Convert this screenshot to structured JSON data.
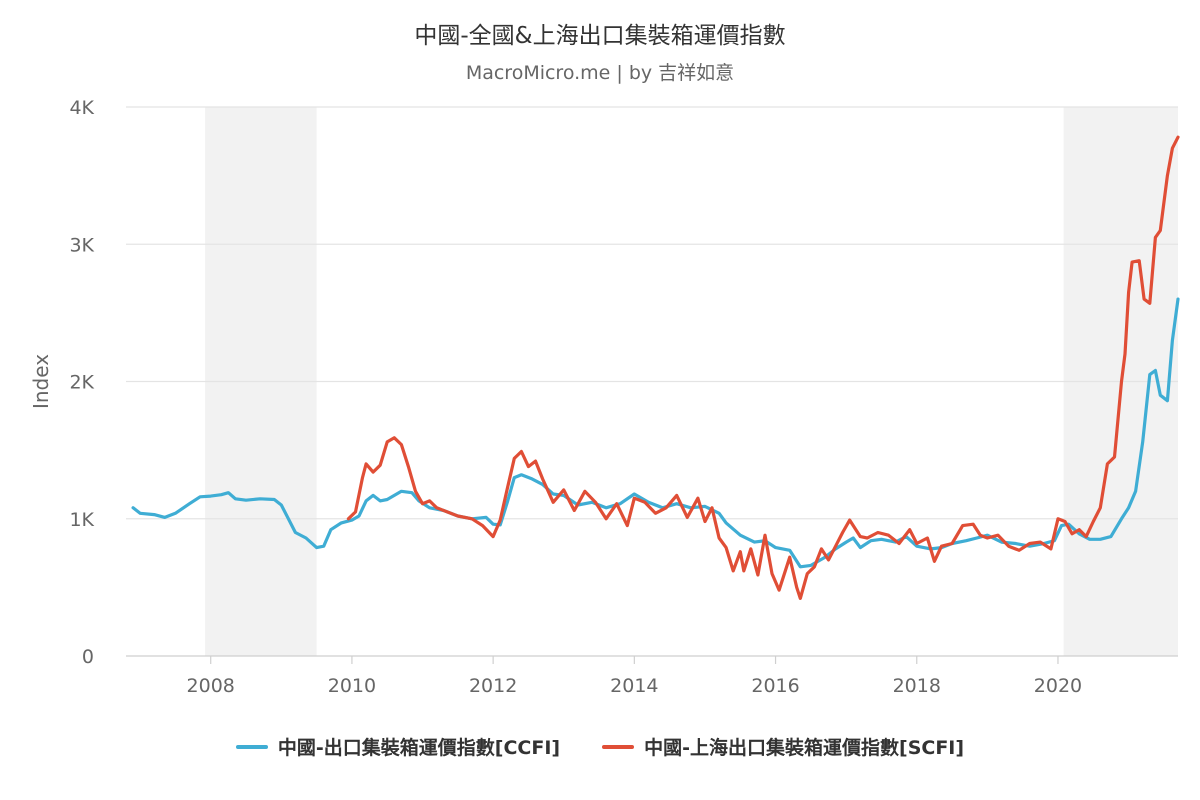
{
  "chart_data": {
    "type": "line",
    "title": "中國-全國&上海出口集裝箱運價指數",
    "subtitle": "MacroMicro.me | by 吉祥如意",
    "ylabel": "Index",
    "xlabel": "",
    "xlim": [
      2006.8,
      2021.7
    ],
    "ylim": [
      0,
      4000
    ],
    "x_ticks": [
      {
        "value": 2008,
        "label": "2008"
      },
      {
        "value": 2010,
        "label": "2010"
      },
      {
        "value": 2012,
        "label": "2012"
      },
      {
        "value": 2014,
        "label": "2014"
      },
      {
        "value": 2016,
        "label": "2016"
      },
      {
        "value": 2018,
        "label": "2018"
      },
      {
        "value": 2020,
        "label": "2020"
      }
    ],
    "y_ticks": [
      {
        "value": 0,
        "label": "0"
      },
      {
        "value": 1000,
        "label": "1K"
      },
      {
        "value": 2000,
        "label": "2K"
      },
      {
        "value": 3000,
        "label": "3K"
      },
      {
        "value": 4000,
        "label": "4K"
      }
    ],
    "grid": true,
    "legend_position": "bottom",
    "shaded_periods": [
      [
        2007.92,
        2009.5
      ],
      [
        2020.08,
        2021.7
      ]
    ],
    "series": [
      {
        "name": "中國-出口集裝箱運價指數[CCFI]",
        "color": "#3fadd4",
        "points": [
          [
            2006.9,
            1080
          ],
          [
            2007.0,
            1040
          ],
          [
            2007.2,
            1030
          ],
          [
            2007.35,
            1010
          ],
          [
            2007.5,
            1040
          ],
          [
            2007.7,
            1110
          ],
          [
            2007.85,
            1160
          ],
          [
            2008.0,
            1165
          ],
          [
            2008.15,
            1175
          ],
          [
            2008.25,
            1190
          ],
          [
            2008.35,
            1145
          ],
          [
            2008.5,
            1135
          ],
          [
            2008.7,
            1145
          ],
          [
            2008.9,
            1140
          ],
          [
            2009.0,
            1100
          ],
          [
            2009.1,
            1000
          ],
          [
            2009.2,
            900
          ],
          [
            2009.35,
            860
          ],
          [
            2009.5,
            790
          ],
          [
            2009.6,
            800
          ],
          [
            2009.7,
            920
          ],
          [
            2009.85,
            970
          ],
          [
            2010.0,
            990
          ],
          [
            2010.1,
            1020
          ],
          [
            2010.2,
            1130
          ],
          [
            2010.3,
            1170
          ],
          [
            2010.4,
            1130
          ],
          [
            2010.5,
            1140
          ],
          [
            2010.6,
            1170
          ],
          [
            2010.7,
            1200
          ],
          [
            2010.85,
            1190
          ],
          [
            2010.95,
            1130
          ],
          [
            2011.1,
            1080
          ],
          [
            2011.3,
            1060
          ],
          [
            2011.5,
            1020
          ],
          [
            2011.7,
            1000
          ],
          [
            2011.9,
            1010
          ],
          [
            2012.0,
            960
          ],
          [
            2012.1,
            955
          ],
          [
            2012.2,
            1120
          ],
          [
            2012.3,
            1300
          ],
          [
            2012.4,
            1320
          ],
          [
            2012.55,
            1290
          ],
          [
            2012.7,
            1250
          ],
          [
            2012.85,
            1180
          ],
          [
            2013.0,
            1170
          ],
          [
            2013.2,
            1100
          ],
          [
            2013.4,
            1120
          ],
          [
            2013.6,
            1080
          ],
          [
            2013.8,
            1110
          ],
          [
            2014.0,
            1180
          ],
          [
            2014.2,
            1120
          ],
          [
            2014.4,
            1080
          ],
          [
            2014.6,
            1110
          ],
          [
            2014.8,
            1080
          ],
          [
            2015.0,
            1090
          ],
          [
            2015.2,
            1040
          ],
          [
            2015.3,
            970
          ],
          [
            2015.5,
            880
          ],
          [
            2015.7,
            830
          ],
          [
            2015.85,
            840
          ],
          [
            2016.0,
            790
          ],
          [
            2016.2,
            770
          ],
          [
            2016.35,
            650
          ],
          [
            2016.5,
            660
          ],
          [
            2016.7,
            720
          ],
          [
            2016.85,
            780
          ],
          [
            2017.0,
            830
          ],
          [
            2017.1,
            860
          ],
          [
            2017.2,
            790
          ],
          [
            2017.35,
            840
          ],
          [
            2017.5,
            850
          ],
          [
            2017.7,
            830
          ],
          [
            2017.85,
            870
          ],
          [
            2018.0,
            800
          ],
          [
            2018.2,
            780
          ],
          [
            2018.35,
            790
          ],
          [
            2018.5,
            820
          ],
          [
            2018.7,
            840
          ],
          [
            2018.85,
            860
          ],
          [
            2019.0,
            880
          ],
          [
            2019.2,
            830
          ],
          [
            2019.4,
            820
          ],
          [
            2019.6,
            800
          ],
          [
            2019.8,
            820
          ],
          [
            2019.95,
            840
          ],
          [
            2020.05,
            950
          ],
          [
            2020.15,
            960
          ],
          [
            2020.3,
            890
          ],
          [
            2020.45,
            850
          ],
          [
            2020.6,
            850
          ],
          [
            2020.75,
            870
          ],
          [
            2020.9,
            1000
          ],
          [
            2021.0,
            1080
          ],
          [
            2021.1,
            1200
          ],
          [
            2021.2,
            1560
          ],
          [
            2021.3,
            2050
          ],
          [
            2021.38,
            2080
          ],
          [
            2021.45,
            1900
          ],
          [
            2021.55,
            1860
          ],
          [
            2021.62,
            2300
          ],
          [
            2021.7,
            2600
          ]
        ]
      },
      {
        "name": "中國-上海出口集裝箱運價指數[SCFI]",
        "color": "#e04e36",
        "points": [
          [
            2009.95,
            1000
          ],
          [
            2010.05,
            1050
          ],
          [
            2010.15,
            1300
          ],
          [
            2010.2,
            1400
          ],
          [
            2010.3,
            1340
          ],
          [
            2010.4,
            1390
          ],
          [
            2010.5,
            1560
          ],
          [
            2010.6,
            1590
          ],
          [
            2010.7,
            1540
          ],
          [
            2010.8,
            1380
          ],
          [
            2010.9,
            1200
          ],
          [
            2011.0,
            1110
          ],
          [
            2011.1,
            1130
          ],
          [
            2011.2,
            1080
          ],
          [
            2011.35,
            1050
          ],
          [
            2011.5,
            1020
          ],
          [
            2011.7,
            1000
          ],
          [
            2011.85,
            950
          ],
          [
            2012.0,
            870
          ],
          [
            2012.1,
            990
          ],
          [
            2012.2,
            1220
          ],
          [
            2012.3,
            1440
          ],
          [
            2012.4,
            1490
          ],
          [
            2012.5,
            1380
          ],
          [
            2012.6,
            1420
          ],
          [
            2012.7,
            1290
          ],
          [
            2012.85,
            1120
          ],
          [
            2013.0,
            1210
          ],
          [
            2013.15,
            1060
          ],
          [
            2013.3,
            1200
          ],
          [
            2013.45,
            1120
          ],
          [
            2013.6,
            1000
          ],
          [
            2013.75,
            1110
          ],
          [
            2013.9,
            950
          ],
          [
            2014.0,
            1150
          ],
          [
            2014.15,
            1120
          ],
          [
            2014.3,
            1040
          ],
          [
            2014.45,
            1080
          ],
          [
            2014.6,
            1170
          ],
          [
            2014.75,
            1010
          ],
          [
            2014.9,
            1150
          ],
          [
            2015.0,
            980
          ],
          [
            2015.1,
            1080
          ],
          [
            2015.2,
            860
          ],
          [
            2015.3,
            790
          ],
          [
            2015.4,
            620
          ],
          [
            2015.5,
            760
          ],
          [
            2015.55,
            620
          ],
          [
            2015.65,
            780
          ],
          [
            2015.75,
            590
          ],
          [
            2015.85,
            880
          ],
          [
            2015.95,
            600
          ],
          [
            2016.05,
            480
          ],
          [
            2016.2,
            720
          ],
          [
            2016.3,
            500
          ],
          [
            2016.35,
            420
          ],
          [
            2016.45,
            600
          ],
          [
            2016.55,
            650
          ],
          [
            2016.65,
            780
          ],
          [
            2016.75,
            700
          ],
          [
            2016.85,
            800
          ],
          [
            2016.95,
            900
          ],
          [
            2017.05,
            990
          ],
          [
            2017.2,
            870
          ],
          [
            2017.3,
            860
          ],
          [
            2017.45,
            900
          ],
          [
            2017.6,
            880
          ],
          [
            2017.75,
            820
          ],
          [
            2017.9,
            920
          ],
          [
            2018.0,
            820
          ],
          [
            2018.15,
            860
          ],
          [
            2018.25,
            690
          ],
          [
            2018.35,
            800
          ],
          [
            2018.5,
            820
          ],
          [
            2018.65,
            950
          ],
          [
            2018.8,
            960
          ],
          [
            2018.9,
            880
          ],
          [
            2019.0,
            860
          ],
          [
            2019.15,
            880
          ],
          [
            2019.3,
            800
          ],
          [
            2019.45,
            770
          ],
          [
            2019.6,
            820
          ],
          [
            2019.75,
            830
          ],
          [
            2019.9,
            780
          ],
          [
            2020.0,
            1000
          ],
          [
            2020.1,
            980
          ],
          [
            2020.2,
            890
          ],
          [
            2020.3,
            920
          ],
          [
            2020.4,
            870
          ],
          [
            2020.5,
            980
          ],
          [
            2020.6,
            1080
          ],
          [
            2020.7,
            1400
          ],
          [
            2020.8,
            1450
          ],
          [
            2020.9,
            2000
          ],
          [
            2020.95,
            2200
          ],
          [
            2021.0,
            2650
          ],
          [
            2021.05,
            2870
          ],
          [
            2021.15,
            2880
          ],
          [
            2021.22,
            2600
          ],
          [
            2021.3,
            2570
          ],
          [
            2021.38,
            3050
          ],
          [
            2021.45,
            3100
          ],
          [
            2021.55,
            3500
          ],
          [
            2021.62,
            3700
          ],
          [
            2021.7,
            3780
          ]
        ]
      }
    ]
  }
}
